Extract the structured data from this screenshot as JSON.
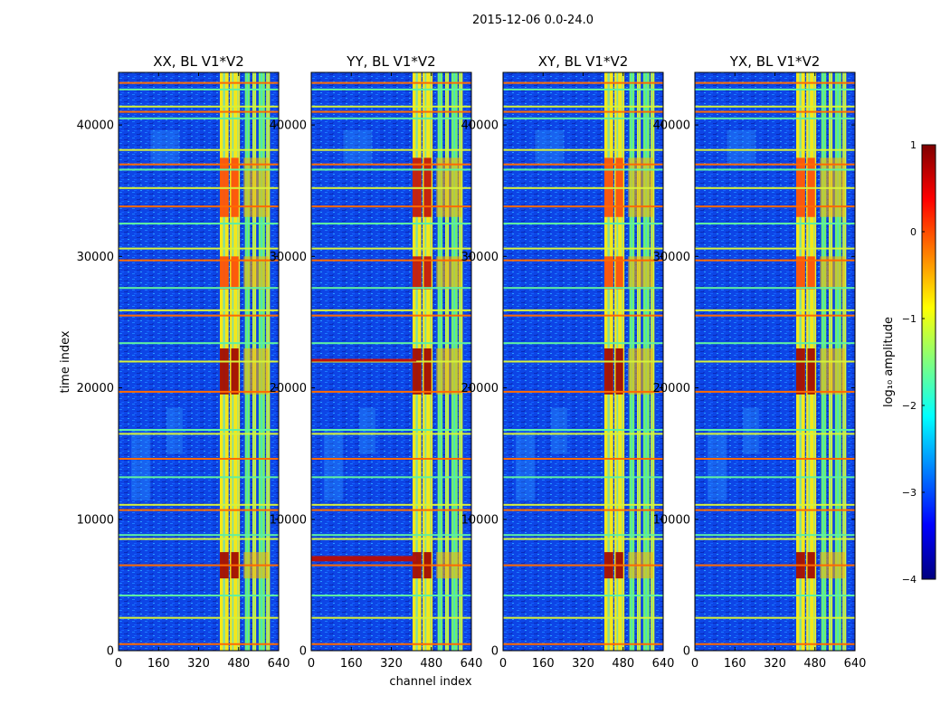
{
  "chart_data": {
    "type": "heatmap",
    "suptitle": "2015-12-06 0.0-24.0",
    "xlabel": "channel index",
    "ylabel": "time index",
    "xlim": [
      0,
      640
    ],
    "ylim": [
      0,
      44000
    ],
    "x_ticks": [
      0,
      160,
      320,
      480,
      640
    ],
    "y_ticks": [
      0,
      10000,
      20000,
      30000,
      40000
    ],
    "panels": [
      {
        "title": "XX, BL V1*V2",
        "polarization": "XX"
      },
      {
        "title": "YY, BL V1*V2",
        "polarization": "YY"
      },
      {
        "title": "XY, BL V1*V2",
        "polarization": "XY"
      },
      {
        "title": "YX, BL V1*V2",
        "polarization": "YX"
      }
    ],
    "strong_channel_bands": [
      [
        405,
        440
      ],
      [
        445,
        470
      ],
      [
        470,
        485
      ],
      [
        505,
        525
      ],
      [
        535,
        550
      ],
      [
        560,
        585
      ],
      [
        590,
        605
      ]
    ],
    "bright_time_blocks": [
      [
        5500,
        7500
      ],
      [
        19500,
        23000
      ],
      [
        27500,
        30000
      ],
      [
        33000,
        37500
      ]
    ],
    "rfi_time_rows": [
      500,
      2500,
      4200,
      6500,
      8500,
      8800,
      10700,
      11100,
      13200,
      14600,
      16500,
      16800,
      19700,
      22000,
      23400,
      25500,
      25900,
      27600,
      29700,
      30600,
      32500,
      33800,
      35200,
      36600,
      37000,
      38100,
      40500,
      41000,
      41400,
      42700,
      43200
    ],
    "colorbar": {
      "label": "log₁₀ amplitude",
      "range": [
        -4,
        1
      ],
      "ticks": [
        1,
        0,
        -1,
        -2,
        -3,
        -4
      ],
      "tick_labels": [
        "1",
        "0",
        "−1",
        "−2",
        "−3",
        "−4"
      ],
      "colormap": "jet",
      "colormap_stops": [
        "#00007f",
        "#0000ff",
        "#007fff",
        "#00ffff",
        "#7fff7f",
        "#ffff00",
        "#ff7f00",
        "#ff0000",
        "#7f0000"
      ]
    }
  }
}
